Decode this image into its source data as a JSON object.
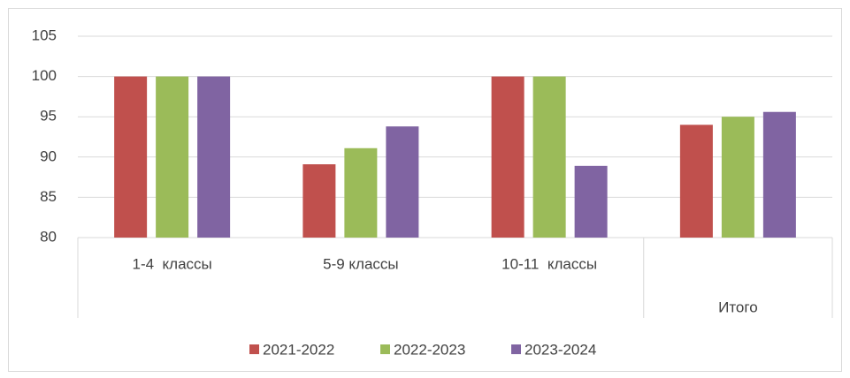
{
  "chart_data": {
    "type": "bar",
    "categories": [
      "1-4  классы",
      "5-9 классы",
      "10-11  классы",
      "Итого"
    ],
    "series": [
      {
        "name": "2021-2022",
        "color": "#c0504d",
        "values": [
          100,
          89.1,
          100,
          94
        ]
      },
      {
        "name": "2022-2023",
        "color": "#9bbb59",
        "values": [
          100,
          91.1,
          100,
          95
        ]
      },
      {
        "name": "2023-2024",
        "color": "#8064a2",
        "values": [
          100,
          93.8,
          88.9,
          95.6
        ]
      }
    ],
    "ylim": [
      80,
      105
    ],
    "yticks": [
      80,
      85,
      90,
      95,
      100,
      105
    ],
    "grid": true,
    "legend": "bottom"
  }
}
